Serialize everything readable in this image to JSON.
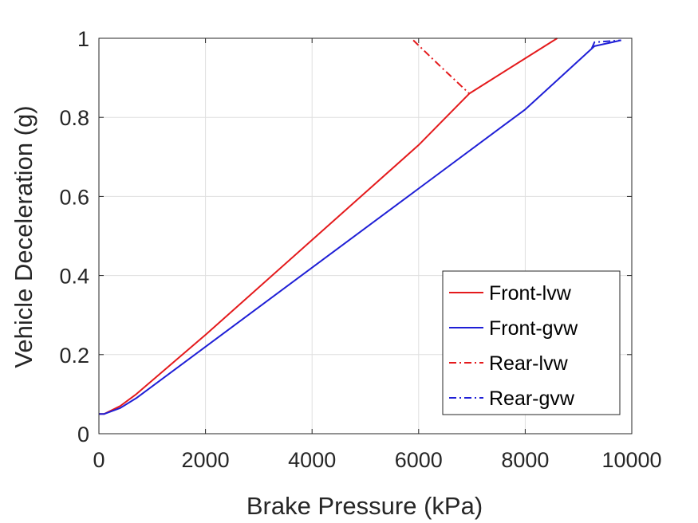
{
  "chart_data": {
    "type": "line",
    "xlabel": "Brake Pressure (kPa)",
    "ylabel": "Vehicle Deceleration (g)",
    "xlim": [
      0,
      10000
    ],
    "ylim": [
      0,
      1
    ],
    "xticks": [
      0,
      2000,
      4000,
      6000,
      8000,
      10000
    ],
    "yticks": [
      0,
      0.2,
      0.4,
      0.6,
      0.8,
      1
    ],
    "xtick_labels": [
      "0",
      "2000",
      "4000",
      "6000",
      "8000",
      "10000"
    ],
    "ytick_labels": [
      "0",
      "0.2",
      "0.4",
      "0.6",
      "0.8",
      "1"
    ],
    "grid": true,
    "legend_position": "bottom-right",
    "series": [
      {
        "name": "Front-lvw",
        "color": "#e41a1c",
        "style": "solid",
        "x": [
          0,
          100,
          400,
          700,
          2000,
          4000,
          6000,
          6950,
          8600
        ],
        "y": [
          0.05,
          0.05,
          0.07,
          0.1,
          0.25,
          0.49,
          0.73,
          0.86,
          1.0
        ]
      },
      {
        "name": "Front-gvw",
        "color": "#1f1fd6",
        "style": "solid",
        "x": [
          0,
          100,
          400,
          700,
          2000,
          4000,
          6000,
          8000,
          9300,
          9800
        ],
        "y": [
          0.05,
          0.05,
          0.065,
          0.09,
          0.22,
          0.42,
          0.62,
          0.82,
          0.98,
          0.995
        ]
      },
      {
        "name": "Rear-lvw",
        "color": "#e41a1c",
        "style": "dashdot",
        "x": [
          5900,
          6400,
          6950
        ],
        "y": [
          0.995,
          0.93,
          0.86
        ]
      },
      {
        "name": "Rear-gvw",
        "color": "#1f1fd6",
        "style": "dashdot",
        "x": [
          9250,
          9300,
          9800
        ],
        "y": [
          0.975,
          0.99,
          0.995
        ]
      }
    ]
  }
}
